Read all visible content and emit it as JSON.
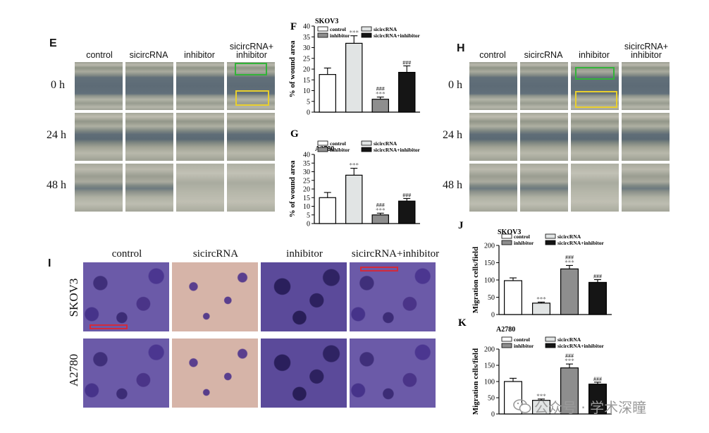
{
  "panel_e": {
    "label": "E",
    "columns": [
      "control",
      "sicircRNA",
      "inhibitor",
      "sicircRNA+\ninhibitor"
    ],
    "rows": [
      "0 h",
      "24 h",
      "48 h"
    ]
  },
  "panel_h": {
    "label": "H",
    "columns": [
      "control",
      "sicircRNA",
      "inhibitor",
      "sicircRNA+\ninhibitor"
    ],
    "rows": [
      "0 h",
      "24 h",
      "48 h"
    ]
  },
  "panel_i": {
    "label": "I",
    "columns": [
      "control",
      "sicircRNA",
      "inhibitor",
      "sicircRNA+inhibitor"
    ],
    "rows": [
      "SKOV3",
      "A2780"
    ]
  },
  "colors": {
    "green_box": "#33b33a",
    "yellow_box": "#e8cf2e",
    "red_scale": "#d12a3c",
    "bar_white": "#ffffff",
    "bar_light": "#e1e4e4",
    "bar_gray": "#8e8e8e",
    "bar_black": "#151515"
  },
  "chart_data": [
    {
      "panel": "F",
      "type": "bar",
      "title": "SKOV3",
      "ylabel": "% of wound area",
      "ylim": [
        0,
        40
      ],
      "yticks": [
        0,
        5,
        10,
        15,
        20,
        25,
        30,
        35,
        40
      ],
      "categories": [
        "control",
        "sicircRNA",
        "inhibitor",
        "sicircRNA+inhibitor"
      ],
      "values": [
        17.5,
        32,
        6,
        18.5
      ],
      "errors": [
        3,
        3.5,
        1,
        3
      ],
      "annotations": [
        [
          "",
          ""
        ],
        [
          "",
          "***"
        ],
        [
          "###",
          "***"
        ],
        [
          "###",
          ""
        ]
      ],
      "legend": [
        "control",
        "sicircRNA",
        "inhibitor",
        "sicircRNA+inhibitor"
      ]
    },
    {
      "panel": "G",
      "type": "bar",
      "title": "A2780",
      "ylabel": "% of wound area",
      "ylim": [
        0,
        40
      ],
      "yticks": [
        0,
        5,
        10,
        15,
        20,
        25,
        30,
        35,
        40
      ],
      "categories": [
        "control",
        "sicircRNA",
        "inhibitor",
        "sicircRNA+inhibitor"
      ],
      "values": [
        15,
        28,
        5,
        13
      ],
      "errors": [
        3,
        4,
        1,
        1.5
      ],
      "annotations": [
        [
          "",
          ""
        ],
        [
          "",
          "***"
        ],
        [
          "###",
          "***"
        ],
        [
          "###",
          ""
        ]
      ],
      "legend": [
        "control",
        "sicircRNA",
        "inhibitor",
        "sicircRNA+inhibitor"
      ]
    },
    {
      "panel": "J",
      "type": "bar",
      "title": "SKOV3",
      "ylabel": "Migration cells/field",
      "ylim": [
        0,
        200
      ],
      "yticks": [
        0,
        50,
        100,
        150,
        200
      ],
      "categories": [
        "control",
        "sicircRNA",
        "inhibitor",
        "sicircRNA+inhibitor"
      ],
      "values": [
        98,
        33,
        132,
        93
      ],
      "errors": [
        8,
        3,
        10,
        8
      ],
      "annotations": [
        [
          "",
          ""
        ],
        [
          "",
          "***"
        ],
        [
          "###",
          "***"
        ],
        [
          "###",
          ""
        ]
      ],
      "legend": [
        "control",
        "inhibitor",
        "sicircRNA",
        "sicircRNA+inhibitor"
      ]
    },
    {
      "panel": "K",
      "type": "bar",
      "title": "A2780",
      "ylabel": "Migration cells/field",
      "ylim": [
        0,
        200
      ],
      "yticks": [
        0,
        50,
        100,
        150,
        200
      ],
      "categories": [
        "control",
        "sicircRNA",
        "inhibitor",
        "sicircRNA+inhibitor"
      ],
      "values": [
        100,
        42,
        142,
        92
      ],
      "errors": [
        10,
        4,
        12,
        6
      ],
      "annotations": [
        [
          "",
          ""
        ],
        [
          "",
          "***"
        ],
        [
          "###",
          "***"
        ],
        [
          "###",
          ""
        ]
      ],
      "legend": [
        "control",
        "inhibitor",
        "sicircRNA",
        "sicircRNA+inhibitor"
      ]
    }
  ],
  "watermark": {
    "icon": "wechat-icon",
    "text": "公众号 · 学术深瞳"
  }
}
